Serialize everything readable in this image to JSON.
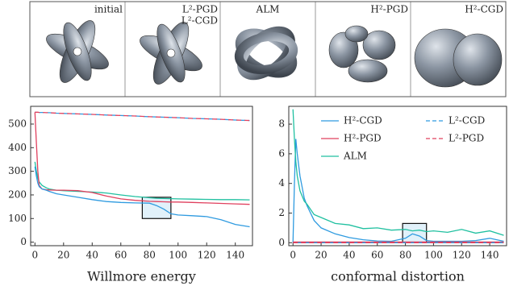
{
  "panels": [
    {
      "labels": [
        "initial"
      ]
    },
    {
      "labels": [
        "L²-PGD",
        "L²-CGD"
      ]
    },
    {
      "labels": [
        "ALM"
      ]
    },
    {
      "labels": [
        "H²-PGD"
      ]
    },
    {
      "labels": [
        "H²-CGD"
      ]
    }
  ],
  "chart_data": [
    {
      "type": "line",
      "x_label": "Willmore energy",
      "x": [
        0,
        1,
        2,
        3,
        5,
        8,
        10,
        15,
        20,
        30,
        40,
        50,
        60,
        70,
        80,
        85,
        90,
        95,
        100,
        110,
        120,
        130,
        140,
        150
      ],
      "xlim": [
        -3,
        152
      ],
      "xticks": [
        0,
        20,
        40,
        60,
        80,
        100,
        120,
        140
      ],
      "ylim": [
        -15,
        575
      ],
      "yticks": [
        0,
        100,
        200,
        300,
        400,
        500
      ],
      "highlight": {
        "x": [
          75,
          95
        ],
        "y": [
          100,
          190
        ]
      },
      "series": [
        {
          "color": "#20c0a0",
          "values": [
            340,
            300,
            270,
            255,
            240,
            230,
            225,
            220,
            218,
            215,
            212,
            208,
            200,
            193,
            188,
            186,
            185,
            184,
            183,
            182,
            181,
            180,
            180,
            179
          ]
        },
        {
          "color": "#e0405e",
          "values": [
            550,
            420,
            300,
            240,
            225,
            222,
            221,
            220,
            220,
            218,
            210,
            195,
            183,
            177,
            173,
            172,
            171,
            170,
            170,
            168,
            166,
            164,
            162,
            160
          ]
        },
        {
          "color": "#2f9be0",
          "values": [
            320,
            280,
            250,
            235,
            225,
            220,
            215,
            205,
            200,
            190,
            180,
            172,
            168,
            166,
            165,
            155,
            140,
            120,
            115,
            112,
            108,
            95,
            75,
            65
          ]
        },
        {
          "color": "#2f9be0",
          "dashed": true,
          "values": [
            550,
            550,
            550,
            549,
            549,
            548,
            548,
            546,
            545,
            543,
            541,
            538,
            536,
            534,
            531,
            530,
            529,
            528,
            527,
            524,
            522,
            520,
            517,
            515
          ]
        },
        {
          "color": "#e0405e",
          "dashed": true,
          "values": [
            550,
            550,
            550,
            549,
            549,
            548,
            548,
            546,
            545,
            543,
            541,
            538,
            536,
            534,
            531,
            530,
            529,
            528,
            527,
            524,
            522,
            520,
            517,
            515
          ]
        }
      ]
    },
    {
      "type": "line",
      "x_label": "conformal distortion",
      "x": [
        0,
        1,
        2,
        3,
        5,
        8,
        10,
        15,
        20,
        30,
        40,
        50,
        60,
        70,
        80,
        85,
        90,
        95,
        100,
        110,
        120,
        130,
        140,
        150
      ],
      "xlim": [
        -3,
        152
      ],
      "xticks": [
        0,
        20,
        40,
        60,
        80,
        100,
        120,
        140
      ],
      "ylim": [
        -0.2,
        9.2
      ],
      "yticks": [
        0,
        2,
        4,
        6,
        8
      ],
      "legend": "upper right",
      "highlight": {
        "x": [
          78,
          95
        ],
        "y": [
          0,
          1.3
        ]
      },
      "series": [
        {
          "name": "H²-CGD",
          "color": "#2f9be0",
          "values": [
            0,
            4,
            7,
            6,
            4.5,
            3,
            2.5,
            1.5,
            1,
            0.6,
            0.35,
            0.2,
            0.12,
            0.1,
            0.3,
            0.6,
            0.45,
            0.15,
            0.1,
            0.1,
            0.1,
            0.15,
            0.3,
            0.1
          ]
        },
        {
          "name": "H²-PGD",
          "color": "#e0405e",
          "values": [
            0.05,
            0.05,
            0.05,
            0.05,
            0.05,
            0.05,
            0.05,
            0.05,
            0.05,
            0.05,
            0.05,
            0.05,
            0.05,
            0.05,
            0.05,
            0.05,
            0.05,
            0.05,
            0.05,
            0.05,
            0.05,
            0.05,
            0.05,
            0.05
          ]
        },
        {
          "name": "ALM",
          "color": "#20c0a0",
          "values": [
            9,
            7,
            5.5,
            4.5,
            3.5,
            2.8,
            2.6,
            1.9,
            1.7,
            1.3,
            1.2,
            0.95,
            1,
            0.85,
            0.9,
            0.8,
            0.85,
            0.75,
            0.8,
            0.7,
            0.9,
            0.65,
            0.8,
            0.5
          ]
        },
        {
          "name": "L²-CGD",
          "color": "#2f9be0",
          "dashed": true,
          "values": [
            0,
            0,
            0,
            0,
            0,
            0,
            0,
            0,
            0,
            0,
            0,
            0,
            0,
            0,
            0,
            0,
            0,
            0,
            0,
            0,
            0,
            0,
            0,
            0
          ]
        },
        {
          "name": "L²-PGD",
          "color": "#e0405e",
          "dashed": true,
          "values": [
            0,
            0,
            0,
            0,
            0,
            0,
            0,
            0,
            0,
            0,
            0,
            0,
            0,
            0,
            0,
            0,
            0,
            0,
            0,
            0,
            0,
            0,
            0,
            0
          ]
        }
      ]
    }
  ]
}
